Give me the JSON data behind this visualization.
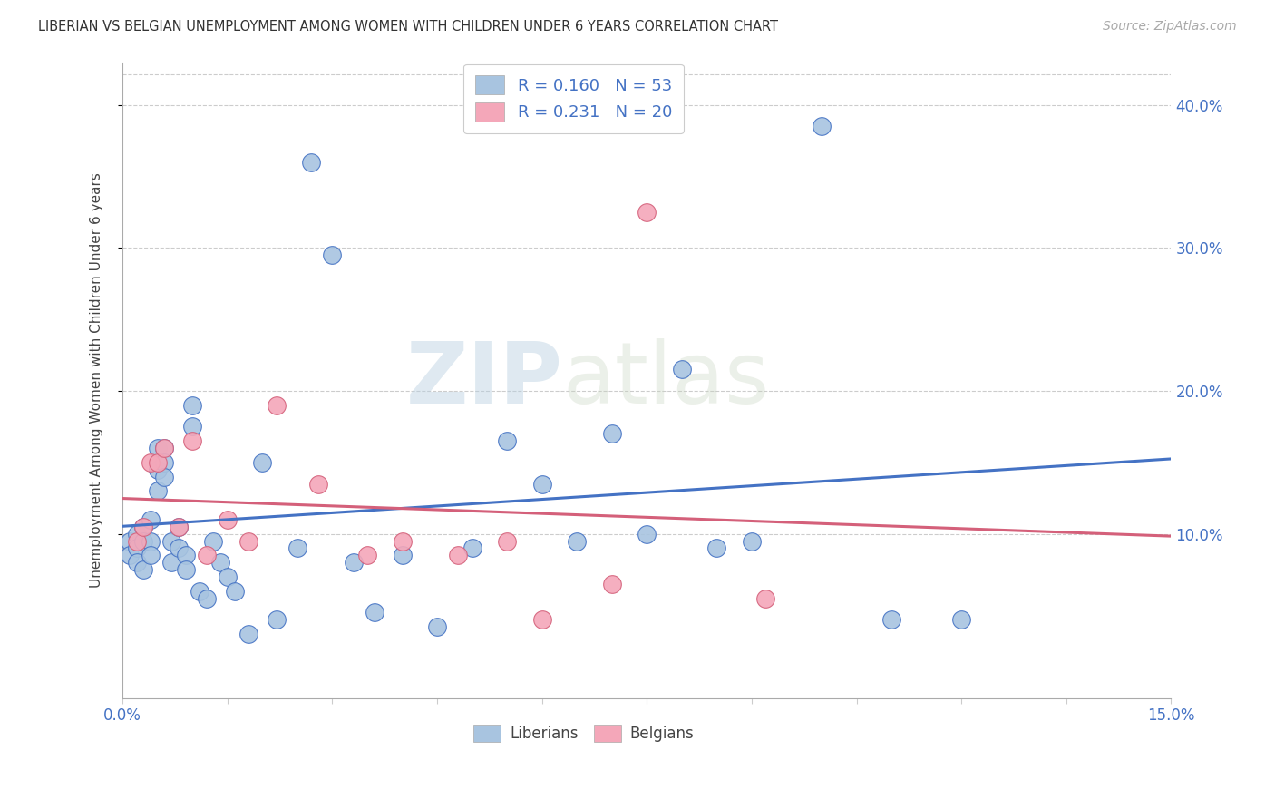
{
  "title": "LIBERIAN VS BELGIAN UNEMPLOYMENT AMONG WOMEN WITH CHILDREN UNDER 6 YEARS CORRELATION CHART",
  "source": "Source: ZipAtlas.com",
  "ylabel": "Unemployment Among Women with Children Under 6 years",
  "ylabel_right_ticks": [
    "40.0%",
    "30.0%",
    "20.0%",
    "10.0%"
  ],
  "ylabel_right_vals": [
    0.4,
    0.3,
    0.2,
    0.1
  ],
  "xmin": 0.0,
  "xmax": 0.15,
  "ymin": -0.015,
  "ymax": 0.43,
  "liberian_color": "#a8c4e0",
  "belgian_color": "#f4a7b9",
  "liberian_line_color": "#4472c4",
  "belgian_line_color": "#d4607a",
  "legend_lib_r": "0.160",
  "legend_lib_n": "53",
  "legend_bel_r": "0.231",
  "legend_bel_n": "20",
  "liberians_x": [
    0.001,
    0.001,
    0.002,
    0.002,
    0.002,
    0.003,
    0.003,
    0.003,
    0.004,
    0.004,
    0.004,
    0.005,
    0.005,
    0.005,
    0.006,
    0.006,
    0.006,
    0.007,
    0.007,
    0.008,
    0.008,
    0.009,
    0.009,
    0.01,
    0.01,
    0.011,
    0.012,
    0.013,
    0.014,
    0.015,
    0.016,
    0.018,
    0.02,
    0.022,
    0.025,
    0.027,
    0.03,
    0.033,
    0.036,
    0.04,
    0.045,
    0.05,
    0.055,
    0.06,
    0.065,
    0.07,
    0.075,
    0.08,
    0.085,
    0.09,
    0.1,
    0.11,
    0.12
  ],
  "liberians_y": [
    0.095,
    0.085,
    0.1,
    0.09,
    0.08,
    0.105,
    0.095,
    0.075,
    0.11,
    0.095,
    0.085,
    0.16,
    0.145,
    0.13,
    0.16,
    0.15,
    0.14,
    0.095,
    0.08,
    0.105,
    0.09,
    0.085,
    0.075,
    0.19,
    0.175,
    0.06,
    0.055,
    0.095,
    0.08,
    0.07,
    0.06,
    0.03,
    0.15,
    0.04,
    0.09,
    0.36,
    0.295,
    0.08,
    0.045,
    0.085,
    0.035,
    0.09,
    0.165,
    0.135,
    0.095,
    0.17,
    0.1,
    0.215,
    0.09,
    0.095,
    0.385,
    0.04,
    0.04
  ],
  "belgians_x": [
    0.002,
    0.003,
    0.004,
    0.005,
    0.006,
    0.008,
    0.01,
    0.012,
    0.015,
    0.018,
    0.022,
    0.028,
    0.035,
    0.04,
    0.048,
    0.055,
    0.06,
    0.07,
    0.075,
    0.092
  ],
  "belgians_y": [
    0.095,
    0.105,
    0.15,
    0.15,
    0.16,
    0.105,
    0.165,
    0.085,
    0.11,
    0.095,
    0.19,
    0.135,
    0.085,
    0.095,
    0.085,
    0.095,
    0.04,
    0.065,
    0.325,
    0.055
  ],
  "watermark_zip": "ZIP",
  "watermark_atlas": "atlas",
  "xtick_positions": [
    0.0,
    0.015,
    0.03,
    0.045,
    0.06,
    0.075,
    0.09,
    0.105,
    0.12,
    0.135,
    0.15
  ]
}
